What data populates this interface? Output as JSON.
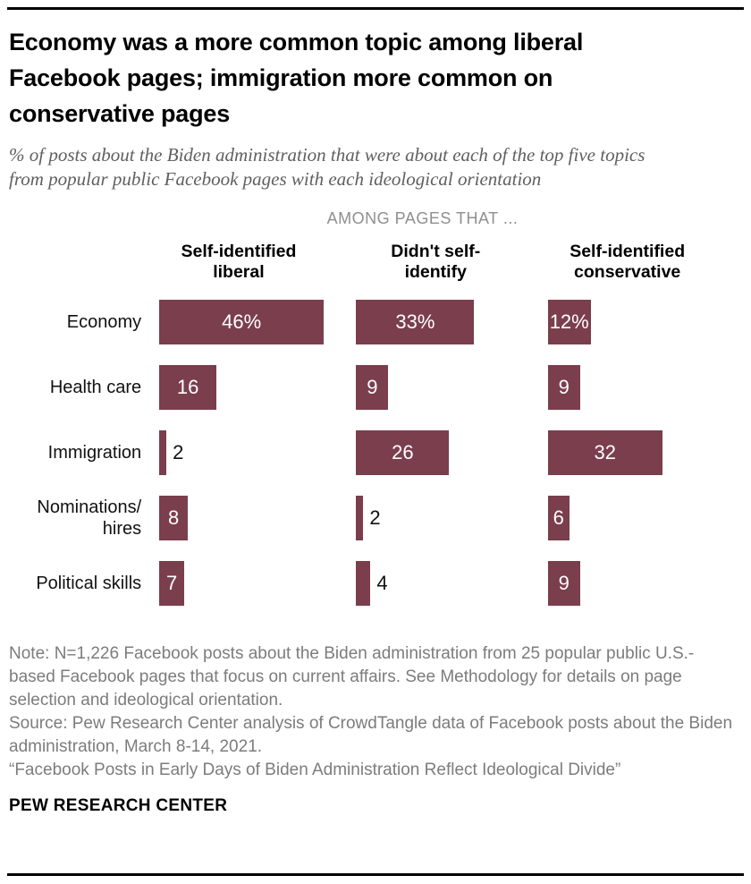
{
  "header": {
    "title": "Economy was a more common topic among liberal Facebook pages; immigration more common on conservative pages",
    "subtitle": "% of posts about the Biden administration that were about each of the top five topics from popular public Facebook pages with each ideological orientation"
  },
  "chart_data": {
    "type": "bar",
    "orientation": "horizontal",
    "group_heading": "AMONG PAGES THAT ...",
    "categories": [
      "Economy",
      "Health care",
      "Immigration",
      "Nominations/hires",
      "Political skills"
    ],
    "series": [
      {
        "name": "Self-identified liberal",
        "name_lines": [
          "Self-identified",
          "liberal"
        ],
        "values": [
          46,
          16,
          2,
          8,
          7
        ],
        "value_labels": [
          "46%",
          "16",
          "2",
          "8",
          "7"
        ]
      },
      {
        "name": "Didn't self-identify",
        "name_lines": [
          "Didn't self-",
          "identify"
        ],
        "values": [
          33,
          9,
          26,
          2,
          4
        ],
        "value_labels": [
          "33%",
          "9",
          "26",
          "2",
          "4"
        ]
      },
      {
        "name": "Self-identified conservative",
        "name_lines": [
          "Self-identified",
          "conservative"
        ],
        "values": [
          12,
          9,
          32,
          6,
          9
        ],
        "value_labels": [
          "12%",
          "9",
          "32",
          "6",
          "9"
        ]
      }
    ],
    "unit": "percent",
    "xlim": [
      0,
      50
    ],
    "grid": false,
    "legend_position": "column-headers",
    "bar_color": "#7B3E4D",
    "label_inside_color": "#FFFFFF",
    "label_outside_color": "#111111",
    "inside_label_min_value": 6
  },
  "notes": {
    "note": "Note: N=1,226 Facebook posts about the Biden administration from 25 popular public U.S.-based Facebook pages that focus on current affairs. See Methodology for details on page selection and ideological orientation.",
    "source": "Source: Pew Research Center analysis of CrowdTangle data of Facebook posts about the Biden administration, March 8-14, 2021.",
    "report": "“Facebook Posts in Early Days of Biden Administration Reflect Ideological Divide”"
  },
  "footer": {
    "brand": "PEW RESEARCH CENTER"
  }
}
